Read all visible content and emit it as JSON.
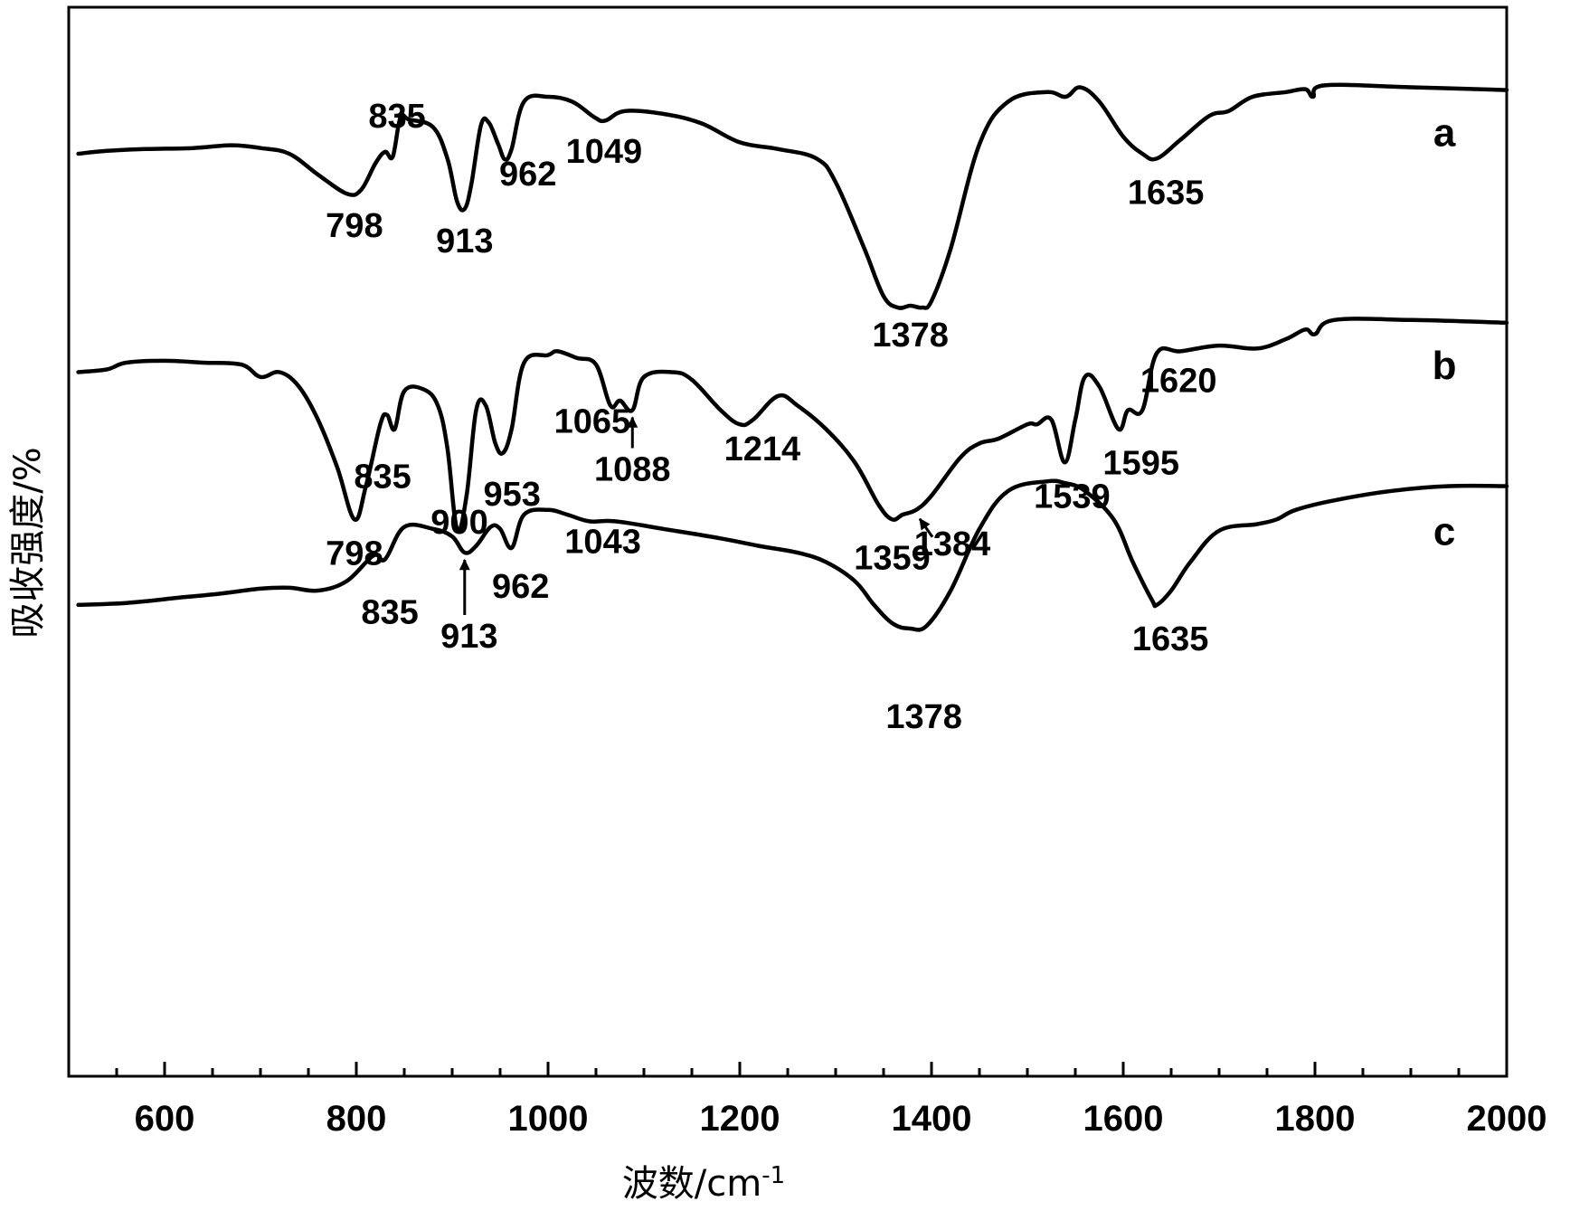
{
  "chart_data": {
    "type": "line",
    "xlabel": "波数/cm",
    "xlabel_sup": "-1",
    "ylabel": "吸收强度/%",
    "xlim": [
      500,
      2000
    ],
    "x_ticks": [
      600,
      800,
      1000,
      1200,
      1400,
      1600,
      1800,
      2000
    ],
    "x_tick_labels": [
      "600",
      "800",
      "1000",
      "1200",
      "1400",
      "1600",
      "1800",
      "2000"
    ],
    "grid": false,
    "y_ticks_visible": false,
    "series": [
      {
        "label": "a",
        "offset": 0.0,
        "points": [
          [
            510,
            0.0
          ],
          [
            540,
            0.03
          ],
          [
            580,
            0.05
          ],
          [
            630,
            0.06
          ],
          [
            670,
            0.09
          ],
          [
            700,
            0.06
          ],
          [
            730,
            0.0
          ],
          [
            760,
            -0.22
          ],
          [
            790,
            -0.42
          ],
          [
            805,
            -0.38
          ],
          [
            820,
            -0.1
          ],
          [
            830,
            0.02
          ],
          [
            838,
            -0.03
          ],
          [
            846,
            0.38
          ],
          [
            855,
            0.36
          ],
          [
            880,
            0.28
          ],
          [
            895,
            -0.05
          ],
          [
            905,
            -0.5
          ],
          [
            913,
            -0.58
          ],
          [
            920,
            -0.32
          ],
          [
            930,
            0.3
          ],
          [
            938,
            0.33
          ],
          [
            948,
            0.1
          ],
          [
            955,
            -0.06
          ],
          [
            962,
            0.05
          ],
          [
            975,
            0.55
          ],
          [
            1000,
            0.6
          ],
          [
            1025,
            0.55
          ],
          [
            1049,
            0.38
          ],
          [
            1060,
            0.35
          ],
          [
            1080,
            0.45
          ],
          [
            1120,
            0.42
          ],
          [
            1160,
            0.32
          ],
          [
            1200,
            0.12
          ],
          [
            1240,
            0.05
          ],
          [
            1280,
            -0.05
          ],
          [
            1300,
            -0.3
          ],
          [
            1330,
            -1.0
          ],
          [
            1350,
            -1.5
          ],
          [
            1365,
            -1.62
          ],
          [
            1378,
            -1.6
          ],
          [
            1390,
            -1.62
          ],
          [
            1400,
            -1.55
          ],
          [
            1420,
            -1.0
          ],
          [
            1450,
            0.1
          ],
          [
            1480,
            0.55
          ],
          [
            1520,
            0.65
          ],
          [
            1540,
            0.6
          ],
          [
            1555,
            0.7
          ],
          [
            1575,
            0.55
          ],
          [
            1600,
            0.18
          ],
          [
            1620,
            0.0
          ],
          [
            1635,
            -0.05
          ],
          [
            1660,
            0.15
          ],
          [
            1690,
            0.4
          ],
          [
            1710,
            0.45
          ],
          [
            1735,
            0.6
          ],
          [
            1770,
            0.65
          ],
          [
            1790,
            0.68
          ],
          [
            1798,
            0.6
          ],
          [
            1810,
            0.72
          ],
          [
            1900,
            0.7
          ],
          [
            2000,
            0.67
          ]
        ]
      },
      {
        "label": "b",
        "offset": -2.3,
        "points": [
          [
            510,
            0.0
          ],
          [
            540,
            0.03
          ],
          [
            560,
            0.1
          ],
          [
            600,
            0.12
          ],
          [
            640,
            0.1
          ],
          [
            680,
            0.08
          ],
          [
            700,
            -0.05
          ],
          [
            720,
            0.0
          ],
          [
            740,
            -0.15
          ],
          [
            760,
            -0.5
          ],
          [
            780,
            -1.0
          ],
          [
            798,
            -1.55
          ],
          [
            810,
            -1.2
          ],
          [
            825,
            -0.55
          ],
          [
            832,
            -0.45
          ],
          [
            840,
            -0.6
          ],
          [
            850,
            -0.2
          ],
          [
            870,
            -0.18
          ],
          [
            885,
            -0.35
          ],
          [
            895,
            -0.8
          ],
          [
            905,
            -1.65
          ],
          [
            915,
            -1.3
          ],
          [
            925,
            -0.4
          ],
          [
            935,
            -0.35
          ],
          [
            945,
            -0.75
          ],
          [
            953,
            -0.85
          ],
          [
            962,
            -0.6
          ],
          [
            975,
            0.1
          ],
          [
            1000,
            0.18
          ],
          [
            1010,
            0.22
          ],
          [
            1030,
            0.15
          ],
          [
            1050,
            0.08
          ],
          [
            1065,
            -0.35
          ],
          [
            1075,
            -0.3
          ],
          [
            1088,
            -0.4
          ],
          [
            1100,
            -0.05
          ],
          [
            1130,
            0.0
          ],
          [
            1150,
            -0.08
          ],
          [
            1180,
            -0.4
          ],
          [
            1200,
            -0.55
          ],
          [
            1214,
            -0.5
          ],
          [
            1240,
            -0.25
          ],
          [
            1260,
            -0.35
          ],
          [
            1290,
            -0.6
          ],
          [
            1320,
            -0.95
          ],
          [
            1345,
            -1.4
          ],
          [
            1359,
            -1.55
          ],
          [
            1370,
            -1.5
          ],
          [
            1384,
            -1.45
          ],
          [
            1400,
            -1.3
          ],
          [
            1430,
            -0.9
          ],
          [
            1450,
            -0.75
          ],
          [
            1470,
            -0.7
          ],
          [
            1500,
            -0.55
          ],
          [
            1510,
            -0.55
          ],
          [
            1525,
            -0.5
          ],
          [
            1539,
            -0.95
          ],
          [
            1550,
            -0.5
          ],
          [
            1560,
            -0.05
          ],
          [
            1575,
            -0.15
          ],
          [
            1595,
            -0.6
          ],
          [
            1605,
            -0.4
          ],
          [
            1620,
            -0.4
          ],
          [
            1635,
            0.2
          ],
          [
            1660,
            0.22
          ],
          [
            1700,
            0.28
          ],
          [
            1740,
            0.25
          ],
          [
            1770,
            0.35
          ],
          [
            1790,
            0.45
          ],
          [
            1800,
            0.4
          ],
          [
            1820,
            0.55
          ],
          [
            1900,
            0.55
          ],
          [
            2000,
            0.52
          ]
        ]
      },
      {
        "label": "c",
        "offset": -4.75,
        "points": [
          [
            510,
            0.0
          ],
          [
            560,
            0.02
          ],
          [
            620,
            0.08
          ],
          [
            660,
            0.12
          ],
          [
            700,
            0.17
          ],
          [
            730,
            0.18
          ],
          [
            760,
            0.15
          ],
          [
            790,
            0.25
          ],
          [
            818,
            0.52
          ],
          [
            830,
            0.48
          ],
          [
            850,
            0.82
          ],
          [
            880,
            0.8
          ],
          [
            900,
            0.72
          ],
          [
            913,
            0.55
          ],
          [
            925,
            0.62
          ],
          [
            940,
            0.82
          ],
          [
            950,
            0.8
          ],
          [
            962,
            0.6
          ],
          [
            975,
            0.95
          ],
          [
            1000,
            1.0
          ],
          [
            1020,
            0.95
          ],
          [
            1043,
            0.88
          ],
          [
            1070,
            0.88
          ],
          [
            1120,
            0.8
          ],
          [
            1180,
            0.7
          ],
          [
            1220,
            0.62
          ],
          [
            1260,
            0.55
          ],
          [
            1290,
            0.45
          ],
          [
            1320,
            0.25
          ],
          [
            1340,
            0.0
          ],
          [
            1360,
            -0.2
          ],
          [
            1378,
            -0.25
          ],
          [
            1395,
            -0.22
          ],
          [
            1420,
            0.15
          ],
          [
            1450,
            0.8
          ],
          [
            1480,
            1.2
          ],
          [
            1520,
            1.3
          ],
          [
            1540,
            1.28
          ],
          [
            1560,
            1.2
          ],
          [
            1590,
            0.9
          ],
          [
            1610,
            0.45
          ],
          [
            1630,
            0.05
          ],
          [
            1635,
            0.0
          ],
          [
            1650,
            0.15
          ],
          [
            1670,
            0.45
          ],
          [
            1700,
            0.78
          ],
          [
            1740,
            0.85
          ],
          [
            1760,
            0.9
          ],
          [
            1780,
            1.0
          ],
          [
            1820,
            1.1
          ],
          [
            1880,
            1.2
          ],
          [
            1940,
            1.25
          ],
          [
            2000,
            1.25
          ]
        ]
      }
    ],
    "annotations": [
      {
        "series": "a",
        "x": 798,
        "text": "798"
      },
      {
        "series": "a",
        "x": 835,
        "text": "835"
      },
      {
        "series": "a",
        "x": 913,
        "text": "913"
      },
      {
        "series": "a",
        "x": 962,
        "text": "962"
      },
      {
        "series": "a",
        "x": 1049,
        "text": "1049"
      },
      {
        "series": "a",
        "x": 1378,
        "text": "1378"
      },
      {
        "series": "a",
        "x": 1635,
        "text": "1635"
      },
      {
        "series": "b",
        "x": 798,
        "text": "798"
      },
      {
        "series": "b",
        "x": 835,
        "text": "835"
      },
      {
        "series": "b",
        "x": 900,
        "text": "900"
      },
      {
        "series": "b",
        "x": 953,
        "text": "953"
      },
      {
        "series": "b",
        "x": 1065,
        "text": "1065"
      },
      {
        "series": "b",
        "x": 1088,
        "text": "1088"
      },
      {
        "series": "b",
        "x": 1214,
        "text": "1214"
      },
      {
        "series": "b",
        "x": 1359,
        "text": "1359"
      },
      {
        "series": "b",
        "x": 1384,
        "text": "1384"
      },
      {
        "series": "b",
        "x": 1539,
        "text": "1539"
      },
      {
        "series": "b",
        "x": 1595,
        "text": "1595"
      },
      {
        "series": "b",
        "x": 1620,
        "text": "1620"
      },
      {
        "series": "c",
        "x": 835,
        "text": "835"
      },
      {
        "series": "c",
        "x": 913,
        "text": "913"
      },
      {
        "series": "c",
        "x": 962,
        "text": "962"
      },
      {
        "series": "c",
        "x": 1043,
        "text": "1043"
      },
      {
        "series": "c",
        "x": 1378,
        "text": "1378"
      },
      {
        "series": "c",
        "x": 1635,
        "text": "1635"
      }
    ]
  }
}
